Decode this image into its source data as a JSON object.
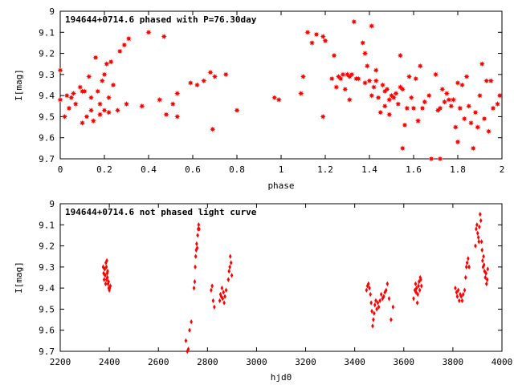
{
  "chart_data": [
    {
      "type": "scatter",
      "title": "194644+0714.6 phased with P=76.30day",
      "xlabel": "phase",
      "ylabel": "I[mag]",
      "xlim": [
        0,
        2
      ],
      "ylim": [
        9,
        9.7
      ],
      "y_inverted": true,
      "grid": false,
      "marker": "red filled star",
      "color": "#ff0000",
      "xticks": [
        "0",
        "0.2",
        "0.4",
        "0.6",
        "0.8",
        "1",
        "1.2",
        "1.4",
        "1.6",
        "1.8",
        "2"
      ],
      "yticks": [
        "9",
        "9.1",
        "9.2",
        "9.3",
        "9.4",
        "9.5",
        "9.6",
        "9.7"
      ],
      "series": [
        {
          "points": [
            [
              0.0,
              9.28
            ],
            [
              0.0,
              9.42
            ],
            [
              0.02,
              9.5
            ],
            [
              0.03,
              9.4
            ],
            [
              0.04,
              9.46
            ],
            [
              0.05,
              9.41
            ],
            [
              0.06,
              9.39
            ],
            [
              0.07,
              9.44
            ],
            [
              0.09,
              9.36
            ],
            [
              0.1,
              9.38
            ],
            [
              0.1,
              9.53
            ],
            [
              0.11,
              9.38
            ],
            [
              0.12,
              9.5
            ],
            [
              0.13,
              9.31
            ],
            [
              0.14,
              9.41
            ],
            [
              0.14,
              9.47
            ],
            [
              0.15,
              9.52
            ],
            [
              0.16,
              9.22
            ],
            [
              0.17,
              9.38
            ],
            [
              0.18,
              9.49
            ],
            [
              0.18,
              9.44
            ],
            [
              0.19,
              9.33
            ],
            [
              0.2,
              9.3
            ],
            [
              0.2,
              9.47
            ],
            [
              0.21,
              9.25
            ],
            [
              0.22,
              9.41
            ],
            [
              0.22,
              9.48
            ],
            [
              0.23,
              9.24
            ],
            [
              0.24,
              9.35
            ],
            [
              0.26,
              9.47
            ],
            [
              0.27,
              9.19
            ],
            [
              0.29,
              9.16
            ],
            [
              0.3,
              9.44
            ],
            [
              0.31,
              9.13
            ],
            [
              0.37,
              9.45
            ],
            [
              0.4,
              9.1
            ],
            [
              0.45,
              9.42
            ],
            [
              0.47,
              9.12
            ],
            [
              0.48,
              9.49
            ],
            [
              0.51,
              9.44
            ],
            [
              0.53,
              9.39
            ],
            [
              0.53,
              9.5
            ],
            [
              0.59,
              9.34
            ],
            [
              0.62,
              9.35
            ],
            [
              0.65,
              9.33
            ],
            [
              0.68,
              9.29
            ],
            [
              0.69,
              9.56
            ],
            [
              0.7,
              9.31
            ],
            [
              0.75,
              9.3
            ],
            [
              0.8,
              9.47
            ],
            [
              0.97,
              9.41
            ],
            [
              0.99,
              9.42
            ],
            [
              1.09,
              9.39
            ],
            [
              1.1,
              9.31
            ],
            [
              1.12,
              9.1
            ],
            [
              1.14,
              9.15
            ],
            [
              1.16,
              9.11
            ],
            [
              1.19,
              9.12
            ],
            [
              1.19,
              9.5
            ],
            [
              1.2,
              9.14
            ],
            [
              1.23,
              9.32
            ],
            [
              1.24,
              9.21
            ],
            [
              1.25,
              9.36
            ],
            [
              1.26,
              9.31
            ],
            [
              1.27,
              9.32
            ],
            [
              1.28,
              9.3
            ],
            [
              1.29,
              9.37
            ],
            [
              1.3,
              9.3
            ],
            [
              1.31,
              9.42
            ],
            [
              1.31,
              9.31
            ],
            [
              1.32,
              9.3
            ],
            [
              1.33,
              9.05
            ],
            [
              1.34,
              9.32
            ],
            [
              1.35,
              9.32
            ],
            [
              1.37,
              9.15
            ],
            [
              1.38,
              9.34
            ],
            [
              1.38,
              9.2
            ],
            [
              1.39,
              9.26
            ],
            [
              1.4,
              9.33
            ],
            [
              1.41,
              9.4
            ],
            [
              1.41,
              9.07
            ],
            [
              1.42,
              9.36
            ],
            [
              1.43,
              9.28
            ],
            [
              1.43,
              9.33
            ],
            [
              1.44,
              9.41
            ],
            [
              1.45,
              9.48
            ],
            [
              1.46,
              9.35
            ],
            [
              1.47,
              9.45
            ],
            [
              1.47,
              9.38
            ],
            [
              1.48,
              9.37
            ],
            [
              1.49,
              9.42
            ],
            [
              1.49,
              9.49
            ],
            [
              1.5,
              9.4
            ],
            [
              1.51,
              9.41
            ],
            [
              1.52,
              9.39
            ],
            [
              1.53,
              9.44
            ],
            [
              1.54,
              9.21
            ],
            [
              1.54,
              9.36
            ],
            [
              1.55,
              9.37
            ],
            [
              1.55,
              9.65
            ],
            [
              1.56,
              9.54
            ],
            [
              1.57,
              9.46
            ],
            [
              1.58,
              9.31
            ],
            [
              1.59,
              9.41
            ],
            [
              1.6,
              9.46
            ],
            [
              1.61,
              9.32
            ],
            [
              1.62,
              9.52
            ],
            [
              1.63,
              9.26
            ],
            [
              1.64,
              9.46
            ],
            [
              1.65,
              9.43
            ],
            [
              1.67,
              9.4
            ],
            [
              1.68,
              9.7
            ],
            [
              1.7,
              9.3
            ],
            [
              1.71,
              9.47
            ],
            [
              1.72,
              9.7
            ],
            [
              1.72,
              9.46
            ],
            [
              1.73,
              9.37
            ],
            [
              1.74,
              9.43
            ],
            [
              1.75,
              9.39
            ],
            [
              1.76,
              9.42
            ],
            [
              1.77,
              9.45
            ],
            [
              1.78,
              9.42
            ],
            [
              1.79,
              9.55
            ],
            [
              1.8,
              9.62
            ],
            [
              1.8,
              9.34
            ],
            [
              1.81,
              9.46
            ],
            [
              1.82,
              9.35
            ],
            [
              1.83,
              9.51
            ],
            [
              1.84,
              9.31
            ],
            [
              1.85,
              9.45
            ],
            [
              1.86,
              9.53
            ],
            [
              1.87,
              9.65
            ],
            [
              1.88,
              9.48
            ],
            [
              1.89,
              9.55
            ],
            [
              1.9,
              9.4
            ],
            [
              1.91,
              9.25
            ],
            [
              1.92,
              9.51
            ],
            [
              1.93,
              9.33
            ],
            [
              1.94,
              9.57
            ],
            [
              1.95,
              9.33
            ],
            [
              1.96,
              9.46
            ],
            [
              1.98,
              9.44
            ],
            [
              1.99,
              9.4
            ]
          ]
        }
      ]
    },
    {
      "type": "scatter",
      "title": "194644+0714.6 not phased light curve",
      "xlabel": "hjd0",
      "ylabel": "I[mag]",
      "xlim": [
        2200,
        4000
      ],
      "ylim": [
        9,
        9.7
      ],
      "y_inverted": true,
      "grid": false,
      "marker": "red small diamond",
      "color": "#ff0000",
      "xticks": [
        "2200",
        "2400",
        "2600",
        "2800",
        "3000",
        "3200",
        "3400",
        "3600",
        "3800",
        "4000"
      ],
      "yticks": [
        "9",
        "9.1",
        "9.2",
        "9.3",
        "9.4",
        "9.5",
        "9.6",
        "9.7"
      ],
      "series": [
        {
          "points": [
            [
              2375,
              9.3
            ],
            [
              2377,
              9.33
            ],
            [
              2379,
              9.36
            ],
            [
              2381,
              9.31
            ],
            [
              2383,
              9.34
            ],
            [
              2385,
              9.38
            ],
            [
              2386,
              9.28
            ],
            [
              2388,
              9.3
            ],
            [
              2389,
              9.36
            ],
            [
              2390,
              9.27
            ],
            [
              2391,
              9.33
            ],
            [
              2392,
              9.35
            ],
            [
              2393,
              9.32
            ],
            [
              2395,
              9.38
            ],
            [
              2397,
              9.37
            ],
            [
              2398,
              9.4
            ],
            [
              2400,
              9.41
            ],
            [
              2402,
              9.4
            ],
            [
              2404,
              9.39
            ],
            [
              2712,
              9.65
            ],
            [
              2718,
              9.7
            ],
            [
              2722,
              9.69
            ],
            [
              2727,
              9.6
            ],
            [
              2734,
              9.56
            ],
            [
              2745,
              9.4
            ],
            [
              2748,
              9.37
            ],
            [
              2750,
              9.3
            ],
            [
              2752,
              9.25
            ],
            [
              2754,
              9.22
            ],
            [
              2756,
              9.19
            ],
            [
              2758,
              9.21
            ],
            [
              2760,
              9.15
            ],
            [
              2762,
              9.12
            ],
            [
              2764,
              9.1
            ],
            [
              2766,
              9.12
            ],
            [
              2815,
              9.41
            ],
            [
              2819,
              9.39
            ],
            [
              2823,
              9.46
            ],
            [
              2828,
              9.49
            ],
            [
              2850,
              9.46
            ],
            [
              2853,
              9.43
            ],
            [
              2856,
              9.44
            ],
            [
              2859,
              9.4
            ],
            [
              2862,
              9.45
            ],
            [
              2865,
              9.42
            ],
            [
              2868,
              9.47
            ],
            [
              2871,
              9.44
            ],
            [
              2876,
              9.41
            ],
            [
              2885,
              9.36
            ],
            [
              2888,
              9.32
            ],
            [
              2891,
              9.3
            ],
            [
              2893,
              9.25
            ],
            [
              2896,
              9.28
            ],
            [
              2899,
              9.34
            ],
            [
              3448,
              9.41
            ],
            [
              3452,
              9.39
            ],
            [
              3456,
              9.38
            ],
            [
              3460,
              9.4
            ],
            [
              3464,
              9.43
            ],
            [
              3467,
              9.47
            ],
            [
              3470,
              9.51
            ],
            [
              3473,
              9.58
            ],
            [
              3476,
              9.55
            ],
            [
              3479,
              9.52
            ],
            [
              3482,
              9.48
            ],
            [
              3486,
              9.46
            ],
            [
              3490,
              9.5
            ],
            [
              3494,
              9.47
            ],
            [
              3498,
              9.49
            ],
            [
              3503,
              9.46
            ],
            [
              3508,
              9.43
            ],
            [
              3513,
              9.45
            ],
            [
              3518,
              9.44
            ],
            [
              3523,
              9.42
            ],
            [
              3528,
              9.41
            ],
            [
              3533,
              9.38
            ],
            [
              3540,
              9.45
            ],
            [
              3548,
              9.55
            ],
            [
              3556,
              9.49
            ],
            [
              3640,
              9.45
            ],
            [
              3645,
              9.41
            ],
            [
              3648,
              9.38
            ],
            [
              3650,
              9.42
            ],
            [
              3652,
              9.4
            ],
            [
              3655,
              9.47
            ],
            [
              3657,
              9.43
            ],
            [
              3660,
              9.39
            ],
            [
              3662,
              9.37
            ],
            [
              3665,
              9.41
            ],
            [
              3667,
              9.35
            ],
            [
              3669,
              9.36
            ],
            [
              3672,
              9.39
            ],
            [
              3810,
              9.4
            ],
            [
              3815,
              9.42
            ],
            [
              3818,
              9.44
            ],
            [
              3822,
              9.41
            ],
            [
              3826,
              9.46
            ],
            [
              3830,
              9.43
            ],
            [
              3834,
              9.44
            ],
            [
              3838,
              9.46
            ],
            [
              3842,
              9.43
            ],
            [
              3848,
              9.41
            ],
            [
              3852,
              9.35
            ],
            [
              3855,
              9.3
            ],
            [
              3858,
              9.28
            ],
            [
              3862,
              9.26
            ],
            [
              3866,
              9.3
            ],
            [
              3892,
              9.2
            ],
            [
              3895,
              9.12
            ],
            [
              3898,
              9.1
            ],
            [
              3901,
              9.14
            ],
            [
              3904,
              9.16
            ],
            [
              3906,
              9.18
            ],
            [
              3908,
              9.11
            ],
            [
              3911,
              9.05
            ],
            [
              3914,
              9.08
            ],
            [
              3917,
              9.18
            ],
            [
              3919,
              9.22
            ],
            [
              3921,
              9.27
            ],
            [
              3923,
              9.3
            ],
            [
              3925,
              9.25
            ],
            [
              3927,
              9.29
            ],
            [
              3929,
              9.32
            ],
            [
              3932,
              9.35
            ],
            [
              3935,
              9.33
            ],
            [
              3937,
              9.38
            ],
            [
              3940,
              9.36
            ],
            [
              3942,
              9.31
            ]
          ]
        }
      ]
    }
  ]
}
